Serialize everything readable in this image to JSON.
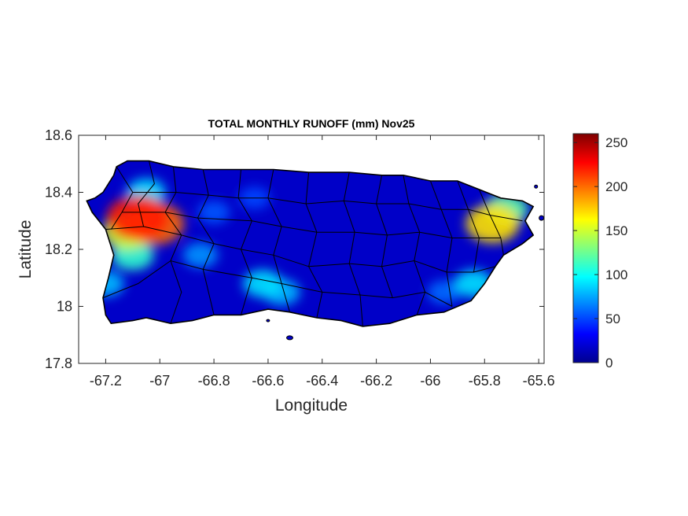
{
  "chart_data": {
    "type": "heatmap",
    "title": "TOTAL MONTHLY RUNOFF (mm) Nov25",
    "xlabel": "Longitude",
    "ylabel": "Latitude",
    "xlim": [
      -67.3,
      -65.58
    ],
    "ylim": [
      17.8,
      18.6
    ],
    "x_ticks": [
      -67.2,
      -67,
      -66.8,
      -66.6,
      -66.4,
      -66.2,
      -66,
      -65.8,
      -65.6
    ],
    "x_tick_labels": [
      "-67.2",
      "-67",
      "-66.8",
      "-66.6",
      "-66.4",
      "-66.2",
      "-66",
      "-65.8",
      "-65.6"
    ],
    "y_ticks": [
      17.8,
      18,
      18.2,
      18.4,
      18.6
    ],
    "y_tick_labels": [
      "17.8",
      "18",
      "18.2",
      "18.4",
      "18.6"
    ],
    "colorbar": {
      "colormap": "jet",
      "range": [
        0,
        260
      ],
      "ticks": [
        0,
        50,
        100,
        150,
        200,
        250
      ],
      "tick_labels": [
        "0",
        "50",
        "100",
        "150",
        "200",
        "250"
      ]
    },
    "hotspots": [
      {
        "lon": -67.08,
        "lat": 18.31,
        "value": 220
      },
      {
        "lon": -67.02,
        "lat": 18.29,
        "value": 200
      },
      {
        "lon": -67.12,
        "lat": 18.26,
        "value": 150
      },
      {
        "lon": -67.05,
        "lat": 18.4,
        "value": 90
      },
      {
        "lon": -67.1,
        "lat": 18.18,
        "value": 110
      },
      {
        "lon": -67.2,
        "lat": 18.08,
        "value": 80
      },
      {
        "lon": -66.85,
        "lat": 18.18,
        "value": 70
      },
      {
        "lon": -66.62,
        "lat": 18.08,
        "value": 90
      },
      {
        "lon": -66.55,
        "lat": 18.05,
        "value": 80
      },
      {
        "lon": -66.8,
        "lat": 18.33,
        "value": 55
      },
      {
        "lon": -66.65,
        "lat": 18.38,
        "value": 50
      },
      {
        "lon": -65.77,
        "lat": 18.29,
        "value": 170
      },
      {
        "lon": -65.72,
        "lat": 18.34,
        "value": 120
      },
      {
        "lon": -65.84,
        "lat": 18.08,
        "value": 90
      },
      {
        "lon": -65.95,
        "lat": 18.05,
        "value": 60
      }
    ],
    "colors": {
      "low": "#00008f",
      "high": "#7f0000",
      "boundary": "#000000"
    }
  }
}
